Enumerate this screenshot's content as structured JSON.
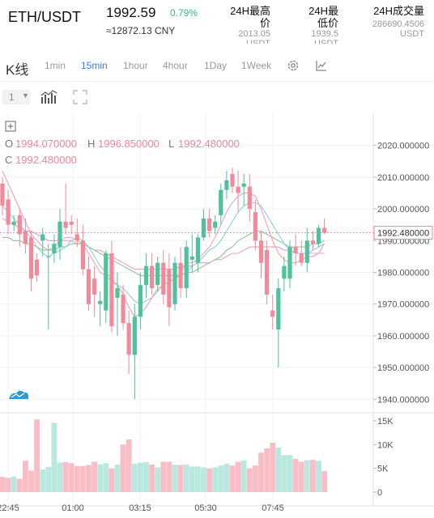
{
  "header": {
    "pair": "ETH/USDT",
    "price": "1992.59",
    "change": "0.79%",
    "cny": "≈12872.13  CNY",
    "high_label": "24H最高\n价",
    "high_value": "2013.05",
    "high_unit": "USDT",
    "low_label": "24H最\n低价",
    "low_value": "1939.5",
    "low_unit": "USDT",
    "vol_label": "24H成交量",
    "vol_value": "286690.4506",
    "vol_unit": "USDT"
  },
  "toolbar": {
    "title": "K线",
    "timeframes": [
      "1min",
      "15min",
      "1hour",
      "4hour",
      "1Day",
      "1Week"
    ],
    "active": "15min",
    "select_value": "1",
    "settings_icon": "gear-icon",
    "indicator_icon": "line-chart-icon",
    "bars_icon": "bar-chart-icon",
    "fullscreen_icon": "expand-icon",
    "add_icon": "plus-box-icon"
  },
  "ohlc": {
    "o_label": "O",
    "o_value": "1994.070000",
    "h_label": "H",
    "h_value": "1996.850000",
    "l_label": "L",
    "l_value": "1992.480000",
    "c_label": "C",
    "c_value": "1992.480000"
  },
  "chart_data": {
    "type": "candlestick",
    "y_ticks": [
      "2020.000000",
      "2010.000000",
      "2000.000000",
      "1990.000000",
      "1980.000000",
      "1970.000000",
      "1960.000000",
      "1950.000000",
      "1940.000000"
    ],
    "current_price": "1992.480000",
    "volume_ticks": [
      "15K",
      "10K",
      "5K",
      "0"
    ],
    "x_ticks": [
      "22:45",
      "01:00",
      "03:15",
      "05:30",
      "07:45"
    ],
    "colors": {
      "up": "#4dc29b",
      "down": "#f28a9a",
      "up_vol": "#b8e8de",
      "down_vol": "#f9bdc6",
      "ma1": "#f0a0b0",
      "ma2": "#8fcae6",
      "ma3": "#92c497",
      "ma4": "#e0a0c8"
    },
    "candles": [
      [
        2008,
        2010,
        1998,
        2001
      ],
      [
        2003,
        2006,
        1992,
        1995
      ],
      [
        1995,
        1998,
        1993,
        1996
      ],
      [
        1998,
        2000,
        1988,
        1992
      ],
      [
        1993,
        1997,
        1986,
        1989
      ],
      [
        1991,
        1993,
        1974,
        1978
      ],
      [
        1984,
        1986,
        1977,
        1979
      ],
      [
        1990,
        1994,
        1985,
        1992
      ],
      [
        1985,
        1989,
        1962,
        1985
      ],
      [
        1986,
        1992,
        1983,
        1989
      ],
      [
        1988,
        2000,
        1984,
        1996
      ],
      [
        1996,
        2008,
        1992,
        1994
      ],
      [
        1996,
        1998,
        1992,
        1995
      ],
      [
        1992,
        1997,
        1988,
        1990
      ],
      [
        1990,
        1995,
        1979,
        1981
      ],
      [
        1981,
        1985,
        1968,
        1970
      ],
      [
        1978,
        1982,
        1966,
        1973
      ],
      [
        1970,
        1974,
        1963,
        1971
      ],
      [
        1968,
        1987,
        1964,
        1986
      ],
      [
        1986,
        1990,
        1961,
        1963
      ],
      [
        1972,
        1980,
        1960,
        1975
      ],
      [
        1973,
        1976,
        1962,
        1964
      ],
      [
        1964,
        1968,
        1948,
        1954
      ],
      [
        1954,
        1970,
        1940,
        1966
      ],
      [
        1966,
        1980,
        1962,
        1976
      ],
      [
        1976,
        1986,
        1972,
        1982
      ],
      [
        1982,
        1986,
        1973,
        1975
      ],
      [
        1976,
        1985,
        1974,
        1983
      ],
      [
        1983,
        1987,
        1970,
        1973
      ],
      [
        1981,
        1986,
        1963,
        1969
      ],
      [
        1970,
        1985,
        1968,
        1983
      ],
      [
        1983,
        1988,
        1972,
        1975
      ],
      [
        1975,
        1990,
        1972,
        1988
      ],
      [
        1984,
        1992,
        1980,
        1985
      ],
      [
        1983,
        1992,
        1980,
        1991
      ],
      [
        1991,
        2000,
        1990,
        1997
      ],
      [
        1997,
        2000,
        1991,
        1993
      ],
      [
        1994,
        1998,
        1992,
        1996
      ],
      [
        1998,
        2008,
        1995,
        2006
      ],
      [
        2006,
        2012,
        2003,
        2009
      ],
      [
        2011,
        2013,
        2005,
        2007
      ],
      [
        2007,
        2012,
        1999,
        2005
      ],
      [
        2007,
        2011,
        2001,
        2008
      ],
      [
        2007,
        2011,
        1996,
        2000
      ],
      [
        1999,
        2003,
        1987,
        1990
      ],
      [
        1990,
        1993,
        1978,
        1983
      ],
      [
        1987,
        1990,
        1970,
        1973
      ],
      [
        1968,
        1973,
        1962,
        1966
      ],
      [
        1962,
        1978,
        1950,
        1975
      ],
      [
        1978,
        1985,
        1974,
        1982
      ],
      [
        1978,
        1990,
        1975,
        1988
      ],
      [
        1988,
        1992,
        1982,
        1986
      ],
      [
        1986,
        1990,
        1982,
        1983
      ],
      [
        1983,
        1994,
        1980,
        1990
      ],
      [
        1990,
        1993,
        1987,
        1989
      ],
      [
        1989,
        1995,
        1988,
        1994
      ],
      [
        1994,
        1997,
        1992,
        1992.5
      ]
    ],
    "volumes": [
      3.2,
      3.0,
      3.3,
      2.8,
      6.6,
      4.5,
      15.3,
      4.8,
      5.3,
      14.6,
      6.2,
      6.3,
      6.1,
      5.5,
      5.5,
      5.7,
      6.4,
      5.8,
      6.1,
      5.0,
      5.8,
      10.0,
      11.1,
      6.0,
      6.2,
      6.3,
      5.8,
      5.2,
      6.4,
      6.4,
      5.8,
      5.7,
      5.8,
      5.4,
      5.4,
      5.2,
      5.0,
      5.2,
      5.6,
      6.0,
      5.6,
      6.4,
      6.7,
      5.0,
      5.6,
      8.3,
      9.2,
      10.4,
      9.4,
      7.8,
      7.8,
      7.0,
      6.4,
      6.7,
      6.8,
      6.6,
      4.4
    ],
    "ma1": [
      2012,
      2008,
      2004,
      2000,
      1996,
      1992,
      1990,
      1988,
      1987,
      1988,
      1990,
      1991,
      1991,
      1990,
      1989,
      1986,
      1983,
      1980,
      1979,
      1977,
      1976,
      1973,
      1969,
      1966,
      1967,
      1969,
      1972,
      1975,
      1976,
      1977,
      1978,
      1980,
      1983,
      1983,
      1984,
      1986,
      1988,
      1991,
      1995,
      1999,
      2002,
      2004,
      2005,
      2005,
      2004,
      2000,
      1995,
      1990,
      1986,
      1984,
      1983,
      1983,
      1984,
      1985,
      1985,
      1986,
      1989
    ],
    "ma2": [
      2001,
      1999,
      1997,
      1995,
      1993,
      1991,
      1988,
      1986,
      1985,
      1986,
      1987,
      1988,
      1990,
      1991,
      1990,
      1988,
      1985,
      1982,
      1980,
      1978,
      1976,
      1975,
      1973,
      1971,
      1970,
      1971,
      1972,
      1974,
      1976,
      1977,
      1978,
      1979,
      1980,
      1982,
      1983,
      1985,
      1987,
      1988,
      1990,
      1993,
      1996,
      1999,
      2001,
      2002,
      2002,
      2001,
      1998,
      1995,
      1992,
      1989,
      1987,
      1986,
      1986,
      1986,
      1987,
      1988,
      1989
    ],
    "ma3": [
      1991,
      1991,
      1990,
      1990,
      1989,
      1989,
      1988,
      1987,
      1987,
      1987,
      1988,
      1988,
      1989,
      1989,
      1989,
      1988,
      1987,
      1986,
      1985,
      1984,
      1983,
      1982,
      1981,
      1980,
      1979,
      1979,
      1979,
      1979,
      1979,
      1979,
      1979,
      1979,
      1980,
      1980,
      1981,
      1982,
      1983,
      1984,
      1985,
      1987,
      1988,
      1990,
      1991,
      1992,
      1993,
      1993,
      1992,
      1991,
      1990,
      1989,
      1988,
      1988,
      1988,
      1988,
      1989,
      1989,
      1990
    ],
    "ma4": [
      1997,
      1996,
      1995,
      1994,
      1993,
      1993,
      1992,
      1991,
      1990,
      1990,
      1990,
      1990,
      1990,
      1989,
      1989,
      1988,
      1987,
      1987,
      1986,
      1985,
      1984,
      1983,
      1982,
      1981,
      1981,
      1981,
      1981,
      1981,
      1981,
      1981,
      1981,
      1982,
      1982,
      1982,
      1983,
      1983,
      1983,
      1984,
      1984,
      1985,
      1986,
      1986,
      1987,
      1988,
      1988,
      1988,
      1988,
      1988,
      1988,
      1987,
      1987,
      1986,
      1986,
      1986,
      1986,
      1986,
      1986
    ]
  }
}
